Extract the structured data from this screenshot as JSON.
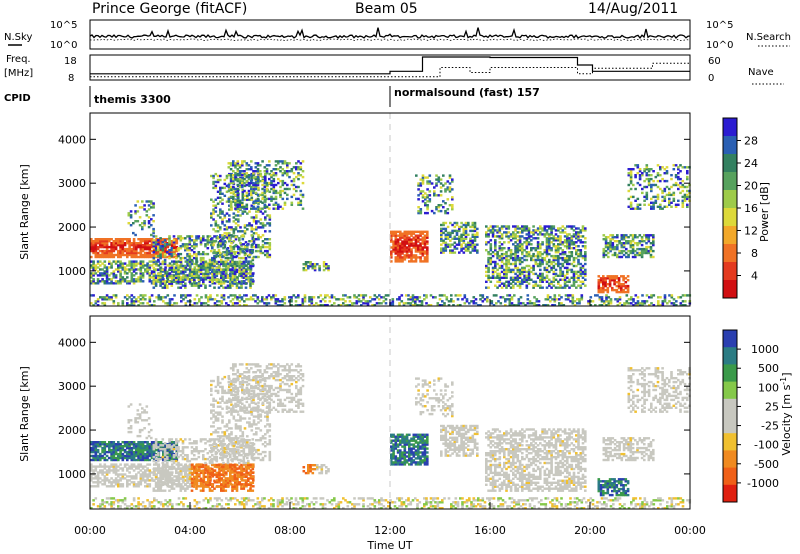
{
  "header": {
    "station": "Prince George (fitACF)",
    "beam": "Beam 05",
    "date": "14/Aug/2011"
  },
  "noise_panel": {
    "left_label": "N.Sky",
    "right_label": "N.Search",
    "left_ticks": [
      "10^5",
      "10^0"
    ],
    "right_ticks": [
      "10^5",
      "10^0"
    ]
  },
  "freq_panel": {
    "left_label_1": "Freq.",
    "left_label_2": "[MHz]",
    "right_label": "Nave",
    "left_ticks": [
      "18",
      "8"
    ],
    "right_ticks": [
      "60",
      "0"
    ],
    "nave_steps": [
      {
        "start_hr": 0,
        "end_hr": 14,
        "nave": 8
      },
      {
        "start_hr": 14,
        "end_hr": 15.2,
        "nave": 30
      },
      {
        "start_hr": 15.2,
        "end_hr": 16,
        "nave": 18
      },
      {
        "start_hr": 16,
        "end_hr": 19.5,
        "nave": 30
      },
      {
        "start_hr": 19.5,
        "end_hr": 20.1,
        "nave": 15
      },
      {
        "start_hr": 20.1,
        "end_hr": 22.5,
        "nave": 28
      },
      {
        "start_hr": 22.5,
        "end_hr": 24,
        "nave": 40
      }
    ],
    "freq_steps": [
      {
        "start_hr": 0,
        "end_hr": 12,
        "freq": 10.5
      },
      {
        "start_hr": 12,
        "end_hr": 13.3,
        "freq": 11.5
      },
      {
        "start_hr": 13.3,
        "end_hr": 16,
        "freq": 17.2
      },
      {
        "start_hr": 16,
        "end_hr": 19.5,
        "freq": 17.0
      },
      {
        "start_hr": 19.5,
        "end_hr": 20.1,
        "freq": 14.0
      },
      {
        "start_hr": 20.1,
        "end_hr": 22.5,
        "freq": 11.5
      },
      {
        "start_hr": 22.5,
        "end_hr": 24,
        "freq": 11.5
      }
    ]
  },
  "cpid": {
    "label": "CPID",
    "modes": [
      {
        "start_hr": 0,
        "name": "themis 3300"
      },
      {
        "start_hr": 12,
        "name": "normalsound (fast) 157"
      }
    ]
  },
  "chart_data": [
    {
      "type": "heatmap",
      "name": "power",
      "ylabel": "Slant Range [km]",
      "ylim": [
        200,
        4600
      ],
      "yticks": [
        1000,
        2000,
        3000,
        4000
      ],
      "xlim": [
        0,
        24
      ],
      "colorbar_label": "Power [dB]",
      "colorbar_ticks": [
        "28",
        "24",
        "20",
        "16",
        "12",
        "8",
        "4"
      ],
      "colorscale": [
        "#2b1cd1",
        "#2a5fb3",
        "#338060",
        "#57a25e",
        "#9ecb4a",
        "#ddd93a",
        "#f2a82a",
        "#f07225",
        "#e43a1f",
        "#d10f12"
      ],
      "colors": {
        "low": "#0000ff",
        "mid": "#55aa55",
        "high": "#ff0000"
      }
    },
    {
      "type": "heatmap",
      "name": "velocity",
      "ylabel": "Slant Range [km]",
      "ylim": [
        200,
        4600
      ],
      "yticks": [
        1000,
        2000,
        3000,
        4000
      ],
      "xlim": [
        0,
        24
      ],
      "xlabel": "Time UT",
      "xticks": [
        "00:00",
        "04:00",
        "08:00",
        "12:00",
        "16:00",
        "20:00",
        "00:00"
      ],
      "colorbar_label": "Velocity [m s^-1]",
      "colorbar_ticks": [
        "1000",
        "500",
        "100",
        "25",
        "-25",
        "-100",
        "-500",
        "-1000"
      ],
      "colorscale": [
        "#2a3fb0",
        "#2b7c84",
        "#3a9a4a",
        "#85c94a",
        "#c8c8c0",
        "#c8c8c0",
        "#f0c030",
        "#f08a20",
        "#f06018",
        "#e02010"
      ],
      "colors": {
        "ground_scatter": "#c8c8c0"
      }
    }
  ]
}
